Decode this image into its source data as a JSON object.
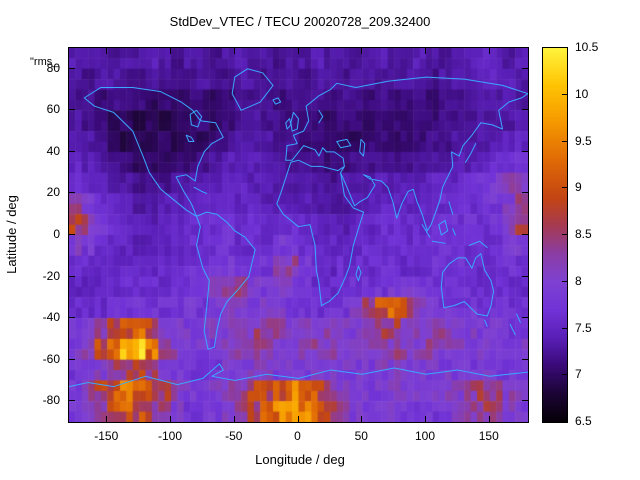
{
  "chart_data": {
    "type": "heatmap",
    "title": "StdDev_VTEC / TECU 20020728_209.32400",
    "annotation": "\"rms_",
    "xlabel": "Longitude / deg",
    "ylabel": "Latitude / deg",
    "xlim": [
      -180,
      180
    ],
    "ylim": [
      -90,
      90
    ],
    "x_ticks": [
      -150,
      -100,
      -50,
      0,
      50,
      100,
      150
    ],
    "y_ticks": [
      80,
      60,
      40,
      20,
      0,
      -20,
      -40,
      -60,
      -80
    ],
    "grid": "off",
    "legend": "colorbar-right",
    "colorbar": {
      "label": "",
      "min": 6.5,
      "max": 10.5,
      "ticks": [
        6.5,
        7,
        7.5,
        8,
        8.5,
        9,
        9.5,
        10,
        10.5
      ],
      "palette_stops": [
        {
          "v": 6.5,
          "c": "#060008"
        },
        {
          "v": 6.8,
          "c": "#1c0535"
        },
        {
          "v": 7.1,
          "c": "#3a0a78"
        },
        {
          "v": 7.4,
          "c": "#5a1fb8"
        },
        {
          "v": 7.7,
          "c": "#7133d6"
        },
        {
          "v": 8.0,
          "c": "#7e41d2"
        },
        {
          "v": 8.3,
          "c": "#8b3da4"
        },
        {
          "v": 8.6,
          "c": "#a63a52"
        },
        {
          "v": 8.9,
          "c": "#c34513"
        },
        {
          "v": 9.3,
          "c": "#e06a06"
        },
        {
          "v": 9.7,
          "c": "#f59800"
        },
        {
          "v": 10.1,
          "c": "#ffc303"
        },
        {
          "v": 10.5,
          "c": "#fff43c"
        }
      ]
    },
    "grid_def": {
      "lon_start": -175,
      "lon_step": 10,
      "lon_count": 36,
      "lat_start": 85,
      "lat_step": -10,
      "lat_count": 18
    },
    "values": [
      [
        7.4,
        7.3,
        7.3,
        7.2,
        7.3,
        7.3,
        7.4,
        7.3,
        7.2,
        7.3,
        7.3,
        7.2,
        7.3,
        7.4,
        7.3,
        7.3,
        7.2,
        7.3,
        7.3,
        7.4,
        7.3,
        7.3,
        7.2,
        7.3,
        7.4,
        7.3,
        7.3,
        7.4,
        7.3,
        7.2,
        7.3,
        7.4,
        7.5,
        7.4,
        7.3,
        7.4
      ],
      [
        7.3,
        7.2,
        7.3,
        7.3,
        7.2,
        7.2,
        7.3,
        7.2,
        7.2,
        7.2,
        7.3,
        7.2,
        7.2,
        7.3,
        7.3,
        7.2,
        7.2,
        7.3,
        7.2,
        7.3,
        7.3,
        7.2,
        7.3,
        7.3,
        7.2,
        7.3,
        7.3,
        7.3,
        7.2,
        7.3,
        7.3,
        7.4,
        7.4,
        7.5,
        7.4,
        7.3
      ],
      [
        7.2,
        7.2,
        7.1,
        7.2,
        7.1,
        7.1,
        7.0,
        7.1,
        7.0,
        7.1,
        7.1,
        7.0,
        7.1,
        7.2,
        7.2,
        7.2,
        7.1,
        7.2,
        7.2,
        7.2,
        7.1,
        7.2,
        7.2,
        7.1,
        7.2,
        7.1,
        7.1,
        7.2,
        7.1,
        7.2,
        7.2,
        7.3,
        7.3,
        7.3,
        7.4,
        7.3
      ],
      [
        7.3,
        7.2,
        7.1,
        7.0,
        7.0,
        6.9,
        7.0,
        6.9,
        7.0,
        7.0,
        7.1,
        7.0,
        7.1,
        7.2,
        7.3,
        7.2,
        7.2,
        7.1,
        7.1,
        7.1,
        7.0,
        7.1,
        7.1,
        7.0,
        7.1,
        7.1,
        7.0,
        7.1,
        7.1,
        7.2,
        7.2,
        7.2,
        7.3,
        7.3,
        7.3,
        7.4
      ],
      [
        7.4,
        7.3,
        7.2,
        7.0,
        6.9,
        6.9,
        6.9,
        7.0,
        6.9,
        7.0,
        7.0,
        7.1,
        7.2,
        7.3,
        7.3,
        7.3,
        7.2,
        7.2,
        7.1,
        7.1,
        7.1,
        7.0,
        7.0,
        7.1,
        7.1,
        7.0,
        7.1,
        7.1,
        7.2,
        7.2,
        7.3,
        7.3,
        7.3,
        7.4,
        7.5,
        7.5
      ],
      [
        7.5,
        7.4,
        7.3,
        7.2,
        7.1,
        7.0,
        7.0,
        7.0,
        7.1,
        7.1,
        7.2,
        7.3,
        7.4,
        7.4,
        7.4,
        7.3,
        7.3,
        7.2,
        7.2,
        7.2,
        7.1,
        7.1,
        7.2,
        7.2,
        7.2,
        7.2,
        7.2,
        7.3,
        7.3,
        7.3,
        7.4,
        7.4,
        7.5,
        7.6,
        7.7,
        7.8
      ],
      [
        7.6,
        7.5,
        7.4,
        7.3,
        7.3,
        7.2,
        7.2,
        7.2,
        7.3,
        7.3,
        7.4,
        7.4,
        7.5,
        7.5,
        7.4,
        7.4,
        7.3,
        7.3,
        7.3,
        7.3,
        7.2,
        7.3,
        7.3,
        7.3,
        7.4,
        7.4,
        7.4,
        7.4,
        7.5,
        7.5,
        7.5,
        7.6,
        7.7,
        7.9,
        8.4,
        8.1
      ],
      [
        8.2,
        7.9,
        7.6,
        7.5,
        7.4,
        7.3,
        7.3,
        7.4,
        7.4,
        7.5,
        7.5,
        7.5,
        7.6,
        7.5,
        7.5,
        7.4,
        7.4,
        7.4,
        7.4,
        7.3,
        7.3,
        7.3,
        7.4,
        7.4,
        7.5,
        7.5,
        7.5,
        7.5,
        7.5,
        7.6,
        7.6,
        7.6,
        7.7,
        7.8,
        8.0,
        8.3
      ],
      [
        8.7,
        8.3,
        7.8,
        7.6,
        7.5,
        7.4,
        7.4,
        7.5,
        7.5,
        7.6,
        7.6,
        7.6,
        7.7,
        7.6,
        7.6,
        7.5,
        7.5,
        7.6,
        7.6,
        7.5,
        7.4,
        7.4,
        7.5,
        7.5,
        7.6,
        7.6,
        7.6,
        7.6,
        7.6,
        7.7,
        7.7,
        7.7,
        7.7,
        7.8,
        8.2,
        8.5
      ],
      [
        8.0,
        7.8,
        7.6,
        7.5,
        7.5,
        7.4,
        7.4,
        7.5,
        7.5,
        7.6,
        7.6,
        7.7,
        7.7,
        7.6,
        7.6,
        7.6,
        7.9,
        7.9,
        7.7,
        7.5,
        7.5,
        7.5,
        7.5,
        7.6,
        7.6,
        7.6,
        7.6,
        7.6,
        7.6,
        7.7,
        7.7,
        7.6,
        7.6,
        7.7,
        7.8,
        7.9
      ],
      [
        7.6,
        7.6,
        7.5,
        7.5,
        7.5,
        7.5,
        7.5,
        7.6,
        7.6,
        7.7,
        7.7,
        7.8,
        7.8,
        7.7,
        7.7,
        7.8,
        8.4,
        8.2,
        7.9,
        7.6,
        7.5,
        7.6,
        7.6,
        7.6,
        7.7,
        7.7,
        7.6,
        7.6,
        7.7,
        7.7,
        7.7,
        7.7,
        7.6,
        7.6,
        7.7,
        7.6
      ],
      [
        7.5,
        7.5,
        7.5,
        7.5,
        7.6,
        7.6,
        7.6,
        7.6,
        7.7,
        7.7,
        7.8,
        8.0,
        8.5,
        8.3,
        7.9,
        7.9,
        8.1,
        8.0,
        7.8,
        7.6,
        7.6,
        7.6,
        7.7,
        7.7,
        7.8,
        7.9,
        7.9,
        7.8,
        7.7,
        7.7,
        7.7,
        7.7,
        7.6,
        7.6,
        7.6,
        7.6
      ],
      [
        7.6,
        7.6,
        7.6,
        7.7,
        7.7,
        7.8,
        7.7,
        7.7,
        7.7,
        7.8,
        7.8,
        7.9,
        8.1,
        8.0,
        7.9,
        7.9,
        7.9,
        7.8,
        7.8,
        7.7,
        7.7,
        7.8,
        8.0,
        8.4,
        8.9,
        9.3,
        8.8,
        8.1,
        7.9,
        7.8,
        7.8,
        7.8,
        7.7,
        7.7,
        7.7,
        7.7
      ],
      [
        7.8,
        7.9,
        8.2,
        8.6,
        9.0,
        9.2,
        8.8,
        8.2,
        7.9,
        7.9,
        7.9,
        8.0,
        8.0,
        8.1,
        8.3,
        8.5,
        8.2,
        8.0,
        8.0,
        8.1,
        8.3,
        8.1,
        8.0,
        8.1,
        8.4,
        8.6,
        8.3,
        8.1,
        8.3,
        8.2,
        8.0,
        8.0,
        7.9,
        7.9,
        7.8,
        7.8
      ],
      [
        7.9,
        8.2,
        8.8,
        9.4,
        10.1,
        10.3,
        9.3,
        8.6,
        8.1,
        8.0,
        7.9,
        7.9,
        8.0,
        8.1,
        8.2,
        8.2,
        8.1,
        8.0,
        8.1,
        8.2,
        8.2,
        8.1,
        8.0,
        8.1,
        8.2,
        8.3,
        8.2,
        8.1,
        8.2,
        8.1,
        8.0,
        8.0,
        8.0,
        7.9,
        7.9,
        7.9
      ],
      [
        7.8,
        7.9,
        8.1,
        8.4,
        8.6,
        8.8,
        8.4,
        8.1,
        7.9,
        7.8,
        7.8,
        7.8,
        7.9,
        7.9,
        8.0,
        8.0,
        7.9,
        7.9,
        7.9,
        8.0,
        8.0,
        7.9,
        7.9,
        7.9,
        8.0,
        8.0,
        7.9,
        7.9,
        7.9,
        7.9,
        7.8,
        7.8,
        7.9,
        7.8,
        7.8,
        7.8
      ],
      [
        7.9,
        8.2,
        8.7,
        9.0,
        9.2,
        9.0,
        8.8,
        8.5,
        8.1,
        7.9,
        7.9,
        8.0,
        8.1,
        8.4,
        8.7,
        8.9,
        9.1,
        9.5,
        9.3,
        8.9,
        8.5,
        8.1,
        7.9,
        7.9,
        7.9,
        8.0,
        8.0,
        7.9,
        7.9,
        8.0,
        8.1,
        8.3,
        8.5,
        8.4,
        8.1,
        8.0
      ],
      [
        7.8,
        8.0,
        8.4,
        8.8,
        9.0,
        8.8,
        8.6,
        8.3,
        8.0,
        7.8,
        7.8,
        7.9,
        8.0,
        8.3,
        8.6,
        9.0,
        9.4,
        9.8,
        9.5,
        9.0,
        8.6,
        8.2,
        7.9,
        7.8,
        7.8,
        7.9,
        7.9,
        7.8,
        7.8,
        7.9,
        8.0,
        8.2,
        8.4,
        8.3,
        8.0,
        7.9
      ]
    ],
    "coastline_color": "#3aa8ff"
  }
}
